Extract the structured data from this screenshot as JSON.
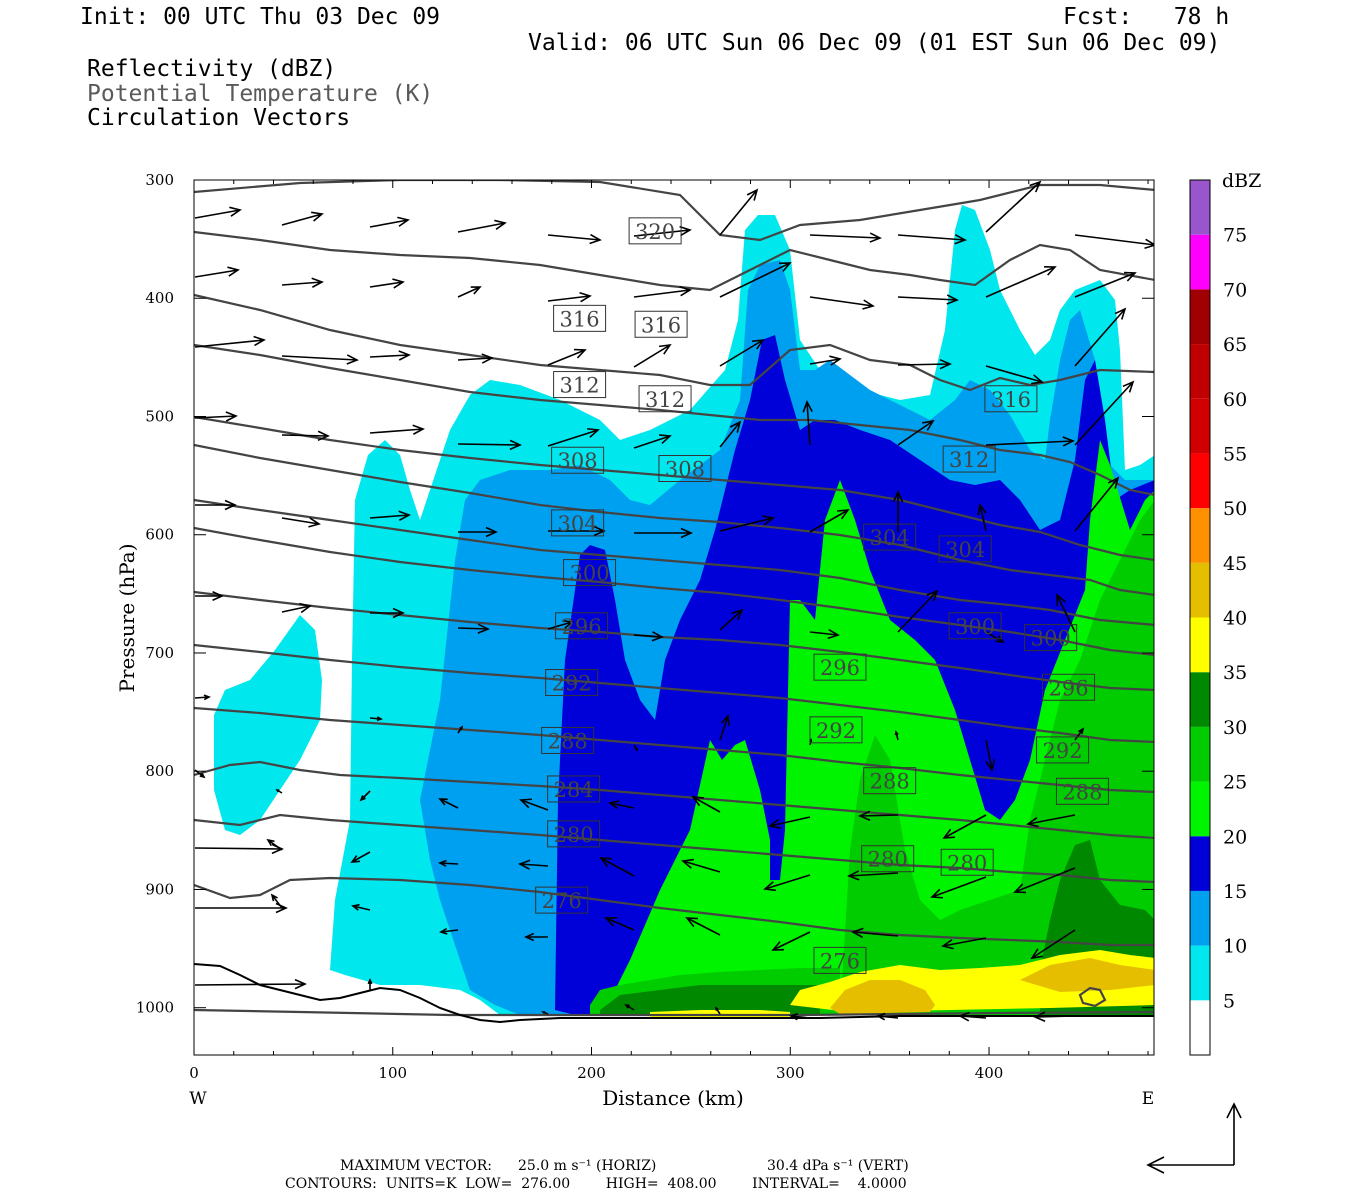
{
  "header": {
    "init": "Init: 00 UTC Thu 03 Dec 09",
    "fcst": "Fcst:   78 h",
    "valid": "Valid: 06 UTC Sun 06 Dec 09 (01 EST Sun 06 Dec 09)",
    "fields": [
      "Reflectivity (dBZ)",
      "Potential Temperature (K)",
      "Circulation Vectors"
    ]
  },
  "footer": {
    "line1_label": "MAXIMUM VECTOR:",
    "line1_horiz": "25.0 m s⁻¹ (HORIZ)",
    "line1_vert": "30.4 dPa s⁻¹ (VERT)",
    "line2": "CONTOURS:  UNITS=K  LOW=  276.00        HIGH=  408.00        INTERVAL=    4.0000"
  },
  "colors": {
    "dbz_5": "#00e8ee",
    "dbz_10": "#00a0f0",
    "dbz_15": "#0000d8",
    "dbz_20": "#00f400",
    "dbz_25": "#00cc00",
    "dbz_30": "#008800",
    "dbz_35": "#ffff00",
    "dbz_40": "#e6be00",
    "dbz_45": "#ff9000",
    "dbz_50": "#ff0000",
    "dbz_55": "#d00000",
    "dbz_60": "#c00000",
    "dbz_65": "#a00000",
    "dbz_70": "#ff00ff",
    "dbz_75": "#9955cc",
    "contour": "#444444"
  },
  "chart_data": {
    "type": "heatmap",
    "xlabel": "Distance (km)",
    "ylabel": "Pressure (hPa)",
    "x_ticks": [
      0,
      100,
      200,
      300,
      400
    ],
    "y_ticks": [
      300,
      400,
      500,
      600,
      700,
      800,
      900,
      1000
    ],
    "xlim": [
      0,
      483
    ],
    "ylim": [
      1040,
      300
    ],
    "x_end_labels": {
      "left": "W",
      "right": "E"
    },
    "colorbar": {
      "title": "dBZ",
      "levels": [
        5,
        10,
        15,
        20,
        25,
        30,
        35,
        40,
        45,
        50,
        55,
        60,
        65,
        70,
        75
      ]
    },
    "theta_contour_labels": [
      {
        "v": "320",
        "x": 232,
        "p": 343
      },
      {
        "v": "316",
        "x": 194,
        "p": 417
      },
      {
        "v": "316",
        "x": 235,
        "p": 422
      },
      {
        "v": "316",
        "x": 411,
        "p": 485
      },
      {
        "v": "312",
        "x": 194,
        "p": 473
      },
      {
        "v": "312",
        "x": 237,
        "p": 485
      },
      {
        "v": "312",
        "x": 390,
        "p": 536
      },
      {
        "v": "308",
        "x": 193,
        "p": 537
      },
      {
        "v": "308",
        "x": 247,
        "p": 544
      },
      {
        "v": "304",
        "x": 193,
        "p": 590
      },
      {
        "v": "304",
        "x": 350,
        "p": 602
      },
      {
        "v": "304",
        "x": 388,
        "p": 612
      },
      {
        "v": "300",
        "x": 199,
        "p": 632
      },
      {
        "v": "300",
        "x": 393,
        "p": 677
      },
      {
        "v": "300",
        "x": 431,
        "p": 687
      },
      {
        "v": "296",
        "x": 195,
        "p": 677
      },
      {
        "v": "296",
        "x": 325,
        "p": 712
      },
      {
        "v": "296",
        "x": 440,
        "p": 729
      },
      {
        "v": "292",
        "x": 190,
        "p": 725
      },
      {
        "v": "292",
        "x": 323,
        "p": 765
      },
      {
        "v": "292",
        "x": 437,
        "p": 782
      },
      {
        "v": "288",
        "x": 188,
        "p": 774
      },
      {
        "v": "288",
        "x": 350,
        "p": 808
      },
      {
        "v": "288",
        "x": 447,
        "p": 817
      },
      {
        "v": "284",
        "x": 191,
        "p": 815
      },
      {
        "v": "280",
        "x": 191,
        "p": 853
      },
      {
        "v": "280",
        "x": 349,
        "p": 874
      },
      {
        "v": "280",
        "x": 389,
        "p": 877
      },
      {
        "v": "276",
        "x": 185,
        "p": 909
      },
      {
        "v": "276",
        "x": 325,
        "p": 960
      }
    ]
  }
}
